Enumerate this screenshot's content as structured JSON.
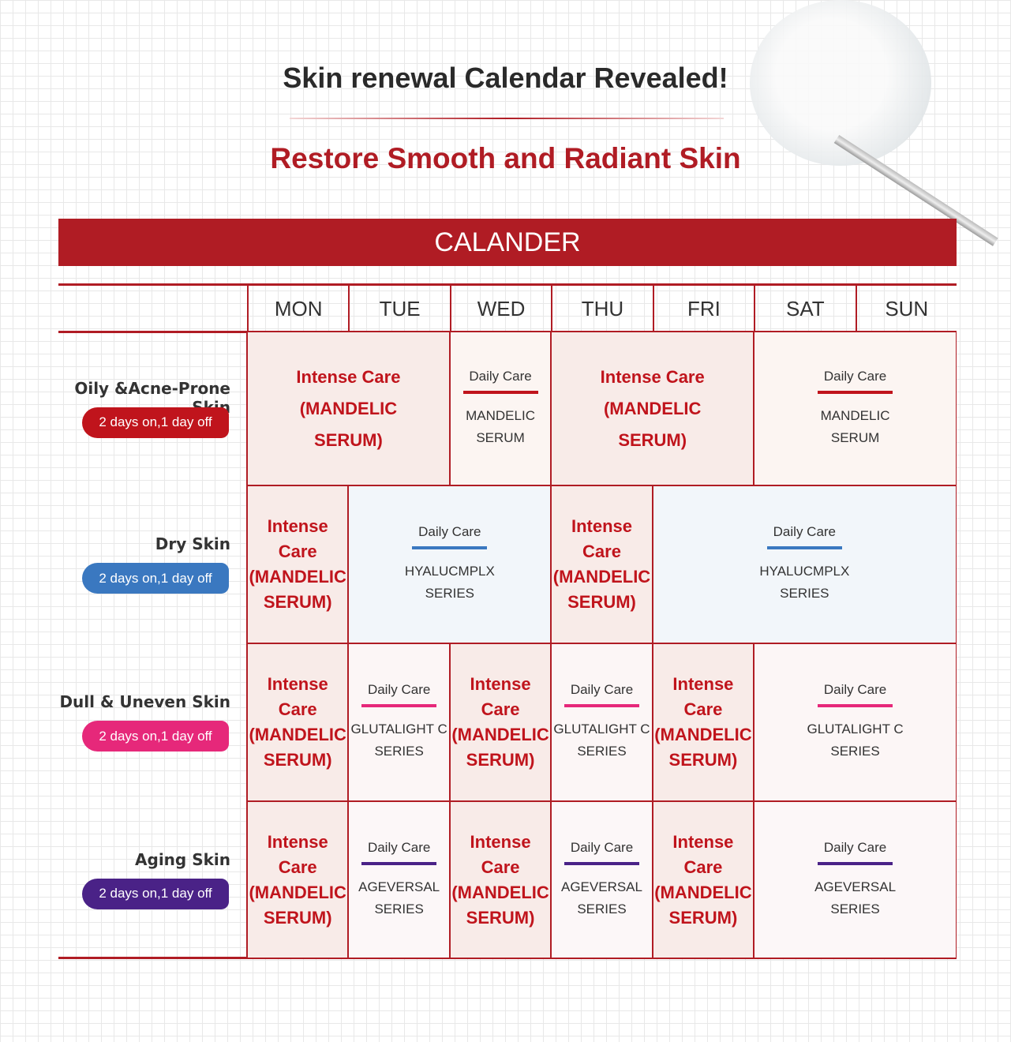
{
  "header": {
    "title": "Skin renewal Calendar Revealed!",
    "subtitle": "Restore Smooth and Radiant Skin"
  },
  "table": {
    "banner": "CALANDER",
    "days": [
      "MON",
      "TUE",
      "WED",
      "THU",
      "FRI",
      "SAT",
      "SUN"
    ],
    "rows": [
      {
        "name": "Oily &Acne-Prone Skin",
        "badge": "2 days on,1 day off",
        "color": "#c0141c",
        "cells": [
          {
            "lines": [
              "Intense Care",
              "(MANDELIC",
              "SERUM)"
            ]
          },
          {
            "label": "Daily Care",
            "product": [
              "MANDELIC",
              "SERUM"
            ]
          },
          {
            "lines": [
              "Intense Care",
              "(MANDELIC",
              "SERUM)"
            ]
          },
          {
            "label": "Daily Care",
            "product": [
              "MANDELIC",
              "SERUM"
            ]
          }
        ]
      },
      {
        "name": "Dry Skin",
        "badge": "2 days on,1 day off",
        "color": "#3a78c0",
        "cells": [
          {
            "lines": [
              "Intense",
              "Care",
              "(MANDELIC",
              "SERUM)"
            ]
          },
          {
            "label": "Daily Care",
            "product": [
              "HYALUCMPLX",
              "SERIES"
            ]
          },
          {
            "lines": [
              "Intense",
              "Care",
              "(MANDELIC",
              "SERUM)"
            ]
          },
          {
            "label": "Daily Care",
            "product": [
              "HYALUCMPLX",
              "SERIES"
            ]
          }
        ]
      },
      {
        "name": "Dull & Uneven Skin",
        "badge": "2 days on,1 day off",
        "color": "#e6287a",
        "cells": [
          {
            "lines": [
              "Intense",
              "Care",
              "(MANDELIC",
              "SERUM)"
            ]
          },
          {
            "label": "Daily Care",
            "product": [
              "GLUTALIGHT C",
              "SERIES"
            ]
          },
          {
            "lines": [
              "Intense",
              "Care",
              "(MANDELIC",
              "SERUM)"
            ]
          },
          {
            "label": "Daily Care",
            "product": [
              "GLUTALIGHT C",
              "SERIES"
            ]
          },
          {
            "lines": [
              "Intense",
              "Care",
              "(MANDELIC",
              "SERUM)"
            ]
          },
          {
            "label": "Daily Care",
            "product": [
              "GLUTALIGHT C",
              "SERIES"
            ]
          }
        ]
      },
      {
        "name": "Aging Skin",
        "badge": "2 days on,1 day off",
        "color": "#4a2287",
        "cells": [
          {
            "lines": [
              "Intense",
              "Care",
              "(MANDELIC",
              "SERUM)"
            ]
          },
          {
            "label": "Daily Care",
            "product": [
              "AGEVERSAL",
              "SERIES"
            ]
          },
          {
            "lines": [
              "Intense",
              "Care",
              "(MANDELIC",
              "SERUM)"
            ]
          },
          {
            "label": "Daily Care",
            "product": [
              "AGEVERSAL",
              "SERIES"
            ]
          },
          {
            "lines": [
              "Intense",
              "Care",
              "(MANDELIC",
              "SERUM)"
            ]
          },
          {
            "label": "Daily Care",
            "product": [
              "AGEVERSAL",
              "SERIES"
            ]
          }
        ]
      }
    ]
  }
}
